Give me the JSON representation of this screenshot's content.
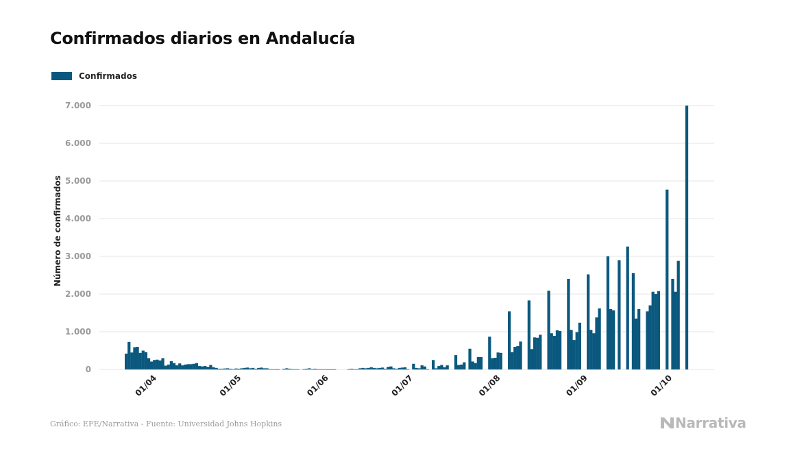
{
  "title": "Confirmados diarios en Andalucía",
  "legend_label": "Confirmados",
  "source": "Gráfico: EFE/Narrativa - Fuente: Universidad Johns Hopkins",
  "logo_text": "Narrativa",
  "colors": {
    "bar": "#0b587e",
    "grid": "#e6e6e6",
    "tick": "#9a9a9a",
    "xtick": "#222222"
  },
  "chart_data": {
    "type": "bar",
    "title": "Confirmados diarios en Andalucía",
    "xlabel": "",
    "ylabel": "Número de confirmados",
    "series": [
      {
        "name": "Confirmados"
      }
    ],
    "x_start_date": "2020-03-24",
    "ylim": [
      0,
      7000
    ],
    "yticks": [
      0,
      1000,
      2000,
      3000,
      4000,
      5000,
      6000,
      7000
    ],
    "ytick_labels": [
      "0",
      "1.000",
      "2.000",
      "3.000",
      "4.000",
      "5.000",
      "6.000",
      "7.000"
    ],
    "xticks": [
      {
        "date": "2020-04-01",
        "label": "01/04"
      },
      {
        "date": "2020-05-01",
        "label": "01/05"
      },
      {
        "date": "2020-06-01",
        "label": "01/06"
      },
      {
        "date": "2020-07-01",
        "label": "01/07"
      },
      {
        "date": "2020-08-01",
        "label": "01/08"
      },
      {
        "date": "2020-09-01",
        "label": "01/09"
      },
      {
        "date": "2020-10-01",
        "label": "01/10"
      }
    ],
    "grid": true,
    "legend_position": "top-left",
    "values": [
      420,
      730,
      450,
      590,
      600,
      440,
      500,
      460,
      300,
      210,
      250,
      260,
      240,
      300,
      100,
      130,
      220,
      170,
      110,
      160,
      110,
      130,
      140,
      140,
      150,
      170,
      90,
      80,
      90,
      70,
      120,
      60,
      40,
      20,
      20,
      25,
      30,
      20,
      15,
      25,
      20,
      30,
      40,
      50,
      30,
      40,
      20,
      40,
      50,
      30,
      30,
      15,
      10,
      10,
      5,
      0,
      20,
      30,
      20,
      15,
      10,
      10,
      0,
      10,
      20,
      30,
      15,
      20,
      10,
      10,
      10,
      10,
      5,
      5,
      10,
      0,
      0,
      0,
      0,
      10,
      20,
      10,
      10,
      30,
      40,
      30,
      40,
      60,
      40,
      30,
      40,
      50,
      20,
      70,
      80,
      30,
      20,
      40,
      50,
      60,
      10,
      0,
      150,
      40,
      30,
      110,
      80,
      10,
      0,
      250,
      30,
      90,
      120,
      60,
      110,
      0,
      0,
      380,
      120,
      130,
      190,
      0,
      550,
      210,
      170,
      330,
      330,
      0,
      0,
      870,
      300,
      310,
      450,
      440,
      0,
      0,
      1540,
      460,
      600,
      620,
      740,
      0,
      0,
      1830,
      540,
      850,
      840,
      920,
      0,
      0,
      2090,
      960,
      890,
      1040,
      1020,
      0,
      0,
      2400,
      1050,
      780,
      990,
      1240,
      0,
      0,
      2520,
      1050,
      960,
      1380,
      1620,
      0,
      0,
      3000,
      1600,
      1570,
      0,
      2900,
      0,
      0,
      3260,
      0,
      2560,
      1350,
      1600,
      0,
      0,
      1540,
      1700,
      2060,
      2000,
      2080,
      0,
      0,
      4770,
      0,
      2400,
      2060,
      2880,
      0,
      0,
      7000
    ]
  }
}
